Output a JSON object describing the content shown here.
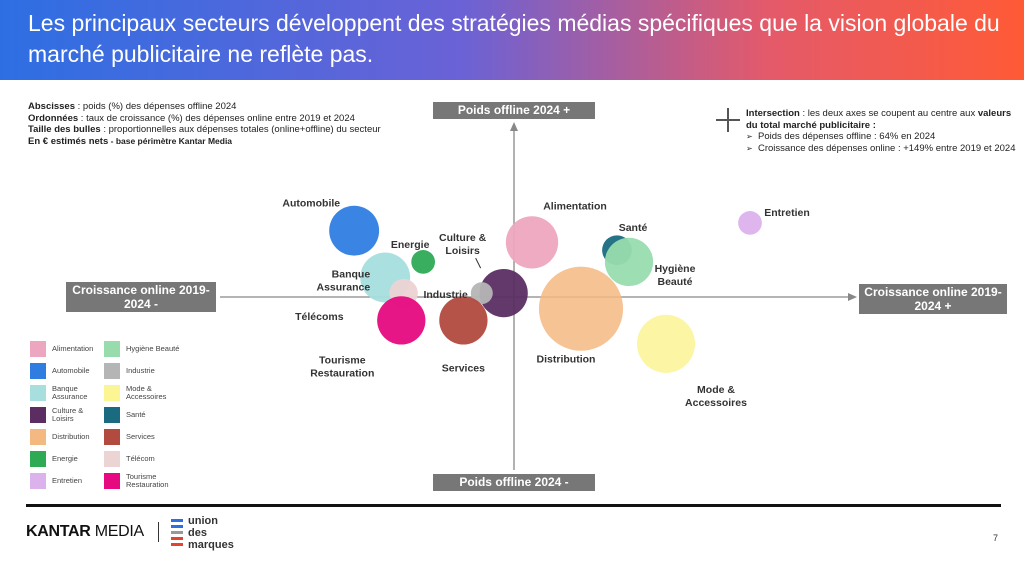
{
  "title": "Les principaux secteurs développent des stratégies médias spécifiques que la vision globale du marché publicitaire ne reflète pas.",
  "notes_left": {
    "abscisses_label": "Abscisses",
    "abscisses_text": " : poids (%) des dépenses offline 2024",
    "ordonnees_label": "Ordonnées",
    "ordonnees_text": " : taux de croissance (%) des dépenses online entre 2019 et 2024",
    "taille_label": "Taille des bulles",
    "taille_text": " : proportionnelles aux dépenses totales (online+offline) du secteur",
    "euro_label": "En € estimés nets",
    "euro_text": " - base périmètre Kantar Media"
  },
  "notes_right": {
    "intersection_label": "Intersection",
    "intersection_text": " : les deux axes se coupent au centre aux ",
    "intersection_bold": "valeurs du total marché publicitaire :",
    "bullets": [
      "Poids des dépenses offline : 64% en 2024",
      "Croissance des dépenses online : +149% entre 2019 et 2024"
    ]
  },
  "axes": {
    "top": "Poids offline 2024 +",
    "bottom": "Poids offline 2024 -",
    "left": "Croissance online 2019-2024 -",
    "right": "Croissance online 2019-2024 +"
  },
  "chart_data": {
    "type": "scatter",
    "subtype": "bubble",
    "xlabel": "Croissance online 2019-2024 (%)",
    "ylabel": "Poids offline 2024 (%)",
    "center": {
      "offline_share_pct": 64,
      "online_growth_pct": 149
    },
    "note": "Values estimated visually; axes have no numeric ticks",
    "series": [
      {
        "name": "Automobile",
        "online_growth": 10,
        "offline_share": 81,
        "size": 62,
        "color": "#2f7de1"
      },
      {
        "name": "Energie",
        "online_growth": 70,
        "offline_share": 73,
        "size": 14,
        "color": "#2eaa55"
      },
      {
        "name": "Banque Assurance",
        "online_growth": 37,
        "offline_share": 69,
        "size": 62,
        "color": "#a7dede"
      },
      {
        "name": "Télécoms",
        "online_growth": 53,
        "offline_share": 65,
        "size": 20,
        "color": "#ecd3d4"
      },
      {
        "name": "Tourisme Restauration",
        "online_growth": 51,
        "offline_share": 58,
        "size": 58,
        "color": "#e6097f"
      },
      {
        "name": "Culture & Loisirs",
        "online_growth": 140,
        "offline_share": 65,
        "size": 58,
        "color": "#5b2d63"
      },
      {
        "name": "Industrie",
        "online_growth": 121,
        "offline_share": 65,
        "size": 12,
        "color": "#b5b5b5"
      },
      {
        "name": "Services",
        "online_growth": 105,
        "offline_share": 58,
        "size": 58,
        "color": "#b24a3f"
      },
      {
        "name": "Alimentation",
        "online_growth": 167,
        "offline_share": 78,
        "size": 68,
        "color": "#eda6bf"
      },
      {
        "name": "Santé",
        "online_growth": 252,
        "offline_share": 76,
        "size": 22,
        "color": "#1a6a80"
      },
      {
        "name": "Hygiène Beauté",
        "online_growth": 264,
        "offline_share": 73,
        "size": 58,
        "color": "#98dcae"
      },
      {
        "name": "Distribution",
        "online_growth": 216,
        "offline_share": 61,
        "size": 176,
        "color": "#f4b981"
      },
      {
        "name": "Mode & Accessoires",
        "online_growth": 301,
        "offline_share": 52,
        "size": 84,
        "color": "#fbf594"
      },
      {
        "name": "Entretien",
        "online_growth": 385,
        "offline_share": 83,
        "size": 14,
        "color": "#dcb2ec"
      }
    ],
    "legend": [
      {
        "label": "Alimentation",
        "color": "#eda6bf"
      },
      {
        "label": "Hygiène Beauté",
        "color": "#98dcae"
      },
      {
        "label": "Automobile",
        "color": "#2f7de1"
      },
      {
        "label": "Industrie",
        "color": "#b5b5b5"
      },
      {
        "label": "Banque Assurance",
        "color": "#a7dede"
      },
      {
        "label": "Mode & Accessoires",
        "color": "#fbf594"
      },
      {
        "label": "Culture & Loisirs",
        "color": "#5b2d63"
      },
      {
        "label": "Santé",
        "color": "#1a6a80"
      },
      {
        "label": "Distribution",
        "color": "#f4b981"
      },
      {
        "label": "Services",
        "color": "#b24a3f"
      },
      {
        "label": "Energie",
        "color": "#2eaa55"
      },
      {
        "label": "Télécom",
        "color": "#ecd3d4"
      },
      {
        "label": "Entretien",
        "color": "#dcb2ec"
      },
      {
        "label": "Tourisme Restauration",
        "color": "#e6097f"
      }
    ],
    "legend_position": "bottom-left"
  },
  "footer": {
    "kantar_bold": "KANTAR",
    "kantar_rest": " MEDIA",
    "udm_lines": [
      "union",
      "des",
      "marques"
    ],
    "page_number": "7"
  }
}
